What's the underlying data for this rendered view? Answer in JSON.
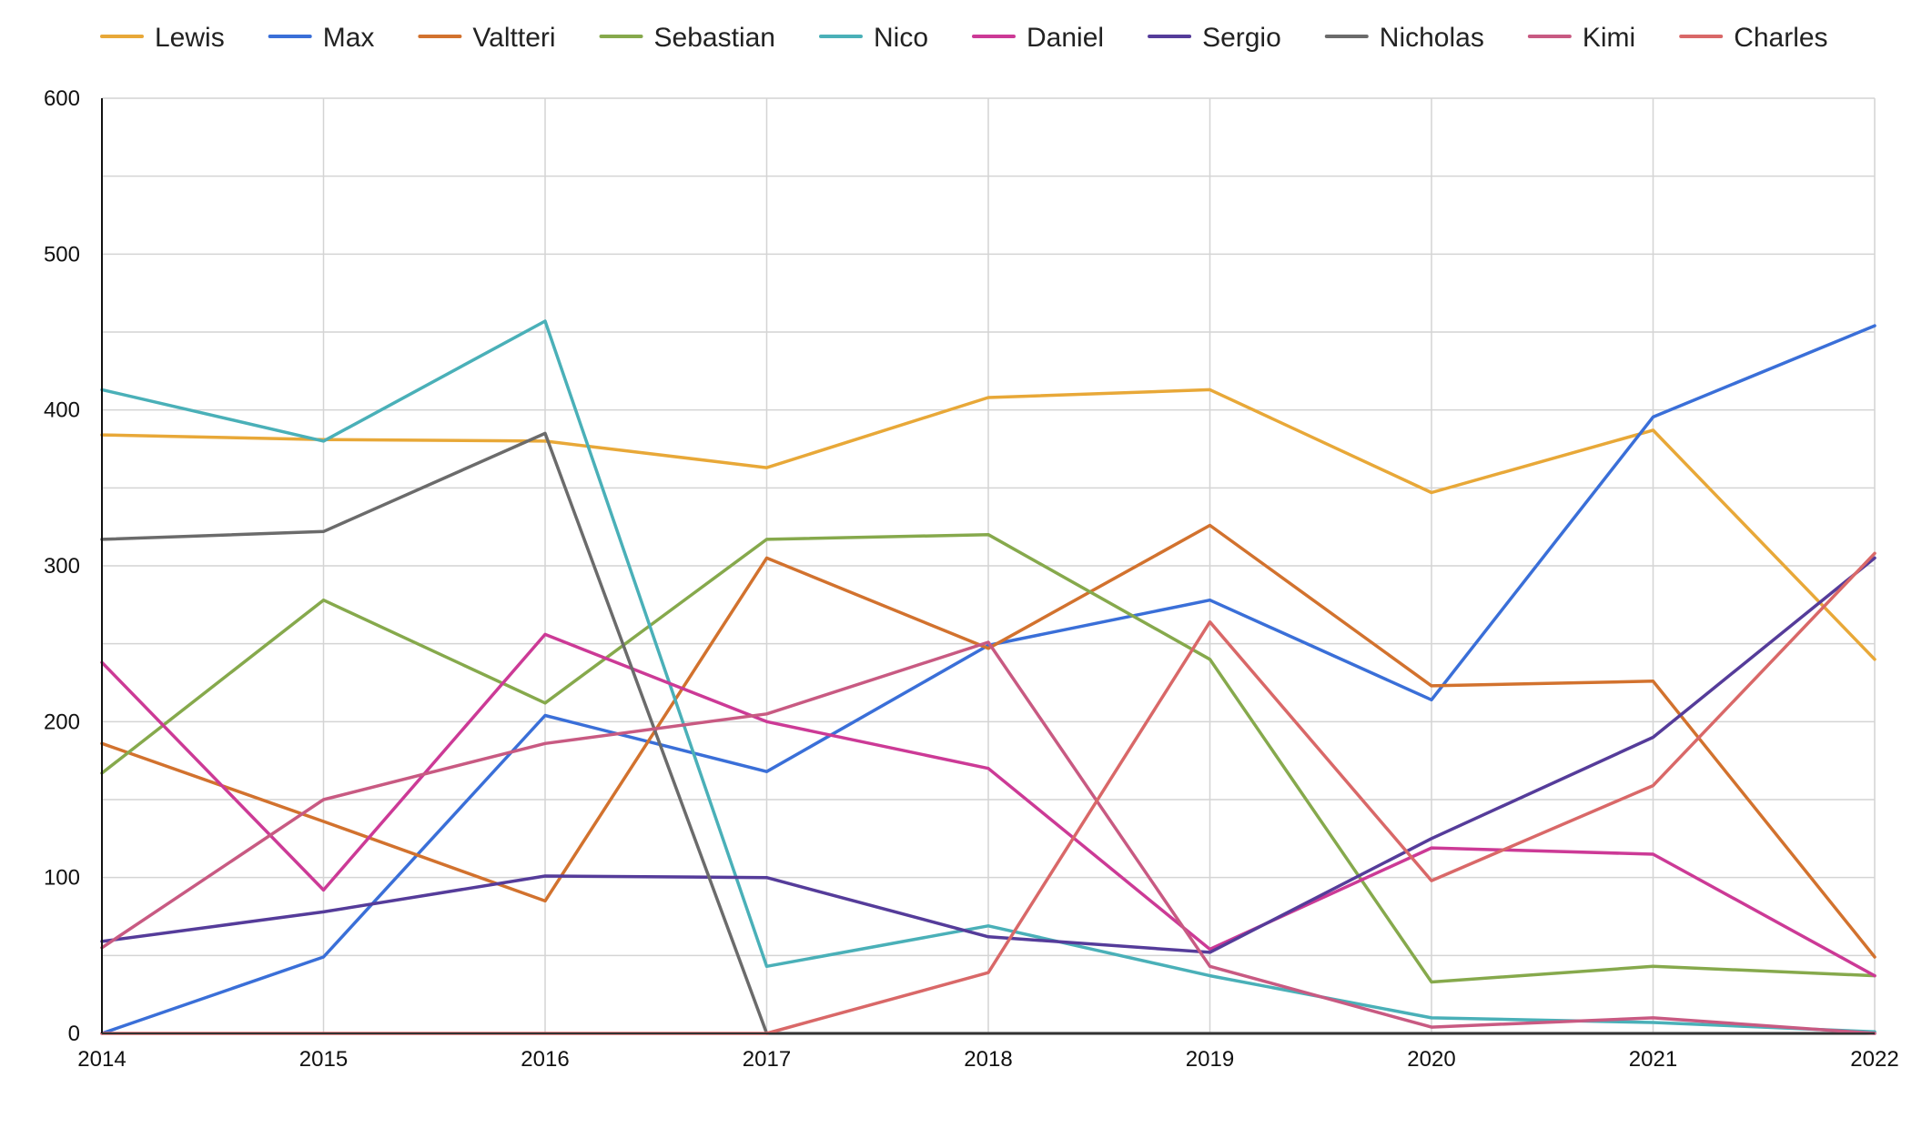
{
  "chart_data": {
    "type": "line",
    "title": "",
    "xlabel": "",
    "ylabel": "",
    "x": [
      "2014",
      "2015",
      "2016",
      "2017",
      "2018",
      "2019",
      "2020",
      "2021",
      "2022"
    ],
    "ylim": [
      0,
      600
    ],
    "yticks": [
      0,
      100,
      200,
      300,
      400,
      500,
      600
    ],
    "grid": true,
    "legend_position": "top",
    "series": [
      {
        "name": "Lewis",
        "color": "#e8a838",
        "values": [
          384,
          381,
          380,
          363,
          408,
          413,
          347,
          387,
          240
        ]
      },
      {
        "name": "Max",
        "color": "#3a6fd8",
        "values": [
          0,
          49,
          204,
          168,
          249,
          278,
          214,
          395.5,
          454
        ]
      },
      {
        "name": "Valtteri",
        "color": "#d2722e",
        "values": [
          186,
          136,
          85,
          305,
          247,
          326,
          223,
          226,
          49
        ]
      },
      {
        "name": "Sebastian",
        "color": "#86a94c",
        "values": [
          167,
          278,
          212,
          317,
          320,
          240,
          33,
          43,
          37
        ]
      },
      {
        "name": "Nico",
        "color": "#4ab0b8",
        "values": [
          413,
          380,
          457,
          43,
          69,
          37,
          10,
          7,
          1
        ]
      },
      {
        "name": "Daniel",
        "color": "#cc3a96",
        "values": [
          238,
          92,
          256,
          200,
          170,
          54,
          119,
          115,
          37
        ]
      },
      {
        "name": "Sergio",
        "color": "#553c9a",
        "values": [
          59,
          78,
          101,
          100,
          62,
          52,
          125,
          190,
          305
        ]
      },
      {
        "name": "Nicholas",
        "color": "#6b6b6b",
        "values": [
          317,
          322,
          385,
          0,
          0,
          0,
          0,
          0,
          0
        ]
      },
      {
        "name": "Kimi",
        "color": "#c85a82",
        "values": [
          55,
          150,
          186,
          205,
          251,
          43,
          4,
          10,
          0
        ]
      },
      {
        "name": "Charles",
        "color": "#d96868",
        "values": [
          0,
          0,
          0,
          0,
          39,
          264,
          98,
          159,
          308
        ]
      }
    ]
  }
}
